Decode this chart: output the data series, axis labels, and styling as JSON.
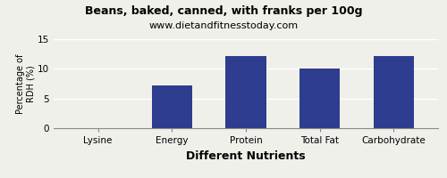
{
  "title": "Beans, baked, canned, with franks per 100g",
  "subtitle": "www.dietandfitnesstoday.com",
  "xlabel": "Different Nutrients",
  "ylabel": "Percentage of\nRDH (%)",
  "categories": [
    "Lysine",
    "Energy",
    "Protein",
    "Total Fat",
    "Carbohydrate"
  ],
  "values": [
    0,
    7.2,
    12.1,
    10.1,
    12.1
  ],
  "bar_color": "#2e3d8f",
  "ylim": [
    0,
    15
  ],
  "yticks": [
    0,
    5,
    10,
    15
  ],
  "background_color": "#f0f0eb",
  "title_fontsize": 9,
  "subtitle_fontsize": 8,
  "xlabel_fontsize": 9,
  "ylabel_fontsize": 7,
  "tick_fontsize": 7.5,
  "bar_width": 0.55
}
